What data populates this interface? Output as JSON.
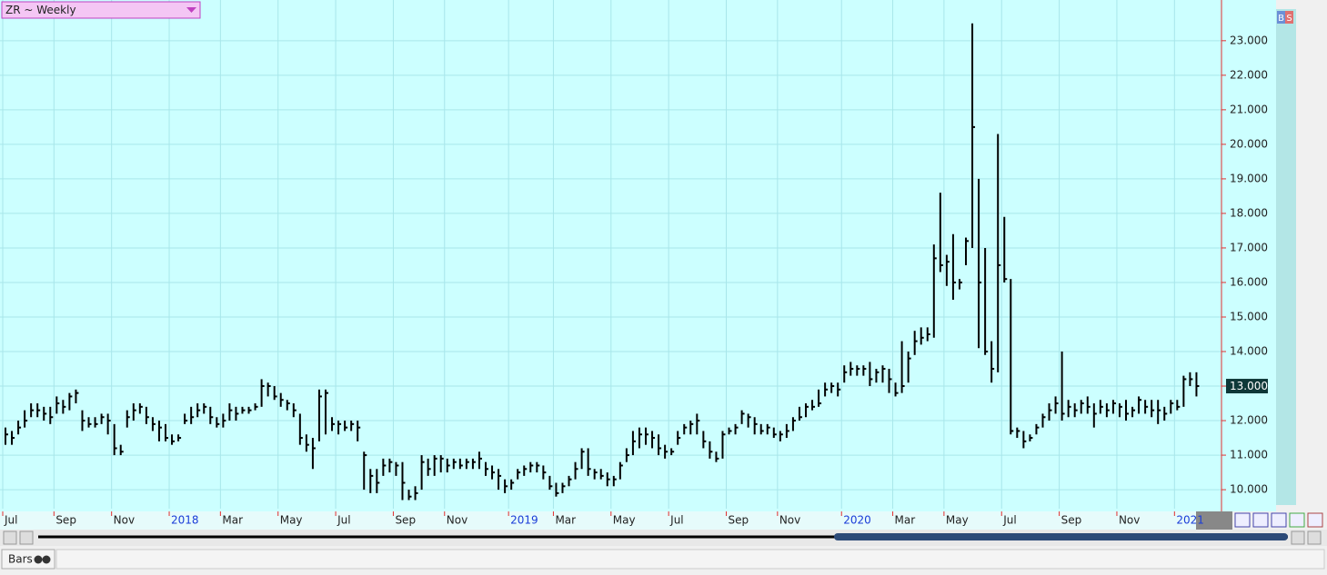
{
  "chart_data": {
    "type": "ohlc",
    "title": "ZR ~ Weekly",
    "categories": [
      "Jul",
      null,
      null,
      null,
      null,
      null,
      null,
      null,
      "Sep",
      null,
      null,
      null,
      null,
      null,
      null,
      null,
      null,
      "Nov",
      null,
      null,
      null,
      null,
      null,
      null,
      null,
      null,
      "2018",
      null,
      null,
      null,
      null,
      null,
      null,
      null,
      "Mar",
      null,
      null,
      null,
      null,
      null,
      null,
      null,
      null,
      "May",
      null,
      null,
      null,
      null,
      null,
      null,
      null,
      null,
      "Jul",
      null,
      null,
      null,
      null,
      null,
      null,
      null,
      null,
      "Sep",
      null,
      null,
      null,
      null,
      null,
      null,
      null,
      "Nov",
      null,
      null,
      null,
      null,
      null,
      null,
      null,
      null,
      null,
      "2019",
      null,
      null,
      null,
      null,
      null,
      null,
      "Mar",
      null,
      null,
      null,
      null,
      null,
      null,
      null,
      null,
      "May",
      null,
      null,
      null,
      null,
      null,
      null,
      null,
      null,
      "Jul",
      null,
      null,
      null,
      null,
      null,
      null,
      null,
      null,
      "Sep",
      null,
      null,
      null,
      null,
      null,
      null,
      null,
      "Nov",
      null,
      null,
      null,
      null,
      null,
      null,
      null,
      null,
      null,
      "2020",
      null,
      null,
      null,
      null,
      null,
      null,
      null,
      "Mar",
      null,
      null,
      null,
      null,
      null,
      null,
      null,
      "May",
      null,
      null,
      null,
      null,
      null,
      null,
      null,
      null,
      "Jul",
      null,
      null,
      null,
      null,
      null,
      null,
      null,
      null,
      "Sep",
      null,
      null,
      null,
      null,
      null,
      null,
      null,
      null,
      "Nov",
      null,
      null,
      null,
      null,
      null,
      null,
      null,
      null,
      "2021",
      null,
      null,
      null
    ],
    "high": [
      11.8,
      11.7,
      12.0,
      12.3,
      12.5,
      12.5,
      12.4,
      12.4,
      12.7,
      12.6,
      12.8,
      12.9,
      12.3,
      12.1,
      12.1,
      12.2,
      12.2,
      11.9,
      11.3,
      12.3,
      12.5,
      12.5,
      12.4,
      12.1,
      12.0,
      11.9,
      11.6,
      11.6,
      12.2,
      12.4,
      12.5,
      12.5,
      12.4,
      12.1,
      12.2,
      12.5,
      12.4,
      12.4,
      12.4,
      12.5,
      13.2,
      13.1,
      13.0,
      12.8,
      12.6,
      12.5,
      12.2,
      11.6,
      11.5,
      12.9,
      12.9,
      12.1,
      12.0,
      12.0,
      12.0,
      12.0,
      11.1,
      10.6,
      10.6,
      10.9,
      10.9,
      10.8,
      10.8,
      10.0,
      10.1,
      11.0,
      10.9,
      11.0,
      11.0,
      10.9,
      10.9,
      10.9,
      10.9,
      10.9,
      11.1,
      10.8,
      10.7,
      10.6,
      10.3,
      10.3,
      10.6,
      10.7,
      10.8,
      10.8,
      10.7,
      10.4,
      10.2,
      10.2,
      10.4,
      10.8,
      11.2,
      11.2,
      10.6,
      10.6,
      10.5,
      10.4,
      10.8,
      11.2,
      11.7,
      11.8,
      11.8,
      11.7,
      11.6,
      11.3,
      11.2,
      11.7,
      11.9,
      12.0,
      12.2,
      11.7,
      11.4,
      11.1,
      11.7,
      11.8,
      11.9,
      12.3,
      12.2,
      12.1,
      11.9,
      11.9,
      11.8,
      11.7,
      11.9,
      12.1,
      12.4,
      12.5,
      12.6,
      12.9,
      13.1,
      13.1,
      13.1,
      13.6,
      13.7,
      13.6,
      13.6,
      13.7,
      13.5,
      13.6,
      13.5,
      13.1,
      14.3,
      14.0,
      14.6,
      14.7,
      14.7,
      17.1,
      18.6,
      16.8,
      17.4,
      16.1,
      17.3,
      23.5,
      19.0,
      17.0,
      14.3,
      20.3,
      17.9,
      16.1,
      11.8,
      11.7,
      11.6,
      11.9,
      12.2,
      12.5,
      12.7,
      14.0,
      12.6,
      12.5,
      12.6,
      12.7,
      12.5,
      12.6,
      12.5,
      12.6,
      12.5,
      12.6,
      12.4,
      12.7,
      12.6,
      12.6,
      12.6,
      12.4,
      12.6,
      12.6,
      13.3,
      13.4,
      13.4
    ],
    "low": [
      11.3,
      11.3,
      11.6,
      11.8,
      12.1,
      12.1,
      12.0,
      11.9,
      12.2,
      12.2,
      12.3,
      12.5,
      11.7,
      11.8,
      11.8,
      11.9,
      11.6,
      11.0,
      11.0,
      11.8,
      12.0,
      12.2,
      11.9,
      11.7,
      11.4,
      11.4,
      11.3,
      11.4,
      11.9,
      11.9,
      12.1,
      12.2,
      11.9,
      11.8,
      11.8,
      12.0,
      12.0,
      12.2,
      12.2,
      12.3,
      12.4,
      12.7,
      12.6,
      12.4,
      12.3,
      12.1,
      11.3,
      11.1,
      10.6,
      11.4,
      11.6,
      11.7,
      11.6,
      11.7,
      11.7,
      11.4,
      10.0,
      9.9,
      9.9,
      10.4,
      10.5,
      10.4,
      9.7,
      9.7,
      9.7,
      10.0,
      10.4,
      10.4,
      10.5,
      10.5,
      10.6,
      10.6,
      10.6,
      10.6,
      10.6,
      10.4,
      10.3,
      10.0,
      9.9,
      10.0,
      10.3,
      10.4,
      10.5,
      10.5,
      10.3,
      10.0,
      9.8,
      9.9,
      10.1,
      10.3,
      10.6,
      10.4,
      10.3,
      10.3,
      10.1,
      10.1,
      10.3,
      10.8,
      11.0,
      11.2,
      11.3,
      11.2,
      11.0,
      10.9,
      11.0,
      11.3,
      11.6,
      11.6,
      11.6,
      11.2,
      10.9,
      10.8,
      10.9,
      11.6,
      11.6,
      11.9,
      11.8,
      11.6,
      11.6,
      11.6,
      11.5,
      11.4,
      11.5,
      11.7,
      12.0,
      12.1,
      12.3,
      12.4,
      12.7,
      12.8,
      12.7,
      13.1,
      13.3,
      13.3,
      13.3,
      13.0,
      13.1,
      13.1,
      12.8,
      12.7,
      12.8,
      13.1,
      13.9,
      14.2,
      14.3,
      14.4,
      16.3,
      15.9,
      15.5,
      15.8,
      16.5,
      17.0,
      14.1,
      13.9,
      13.1,
      13.4,
      16.0,
      11.6,
      11.5,
      11.2,
      11.4,
      11.6,
      11.8,
      12.0,
      12.2,
      12.0,
      12.1,
      12.1,
      12.2,
      12.2,
      11.8,
      12.2,
      12.1,
      12.2,
      12.1,
      12.0,
      12.1,
      12.2,
      12.2,
      12.1,
      11.9,
      12.0,
      12.2,
      12.3,
      12.4,
      13.0,
      12.7
    ],
    "close": [
      11.6,
      11.5,
      11.8,
      12.0,
      12.3,
      12.3,
      12.2,
      12.1,
      12.5,
      12.4,
      12.7,
      12.8,
      12.0,
      11.9,
      11.9,
      12.1,
      12.0,
      11.2,
      11.1,
      12.1,
      12.3,
      12.4,
      12.1,
      11.9,
      11.8,
      11.5,
      11.4,
      11.5,
      12.0,
      12.1,
      12.3,
      12.4,
      12.1,
      11.9,
      12.0,
      12.3,
      12.2,
      12.3,
      12.3,
      12.4,
      13.0,
      13.0,
      12.7,
      12.6,
      12.5,
      12.3,
      11.5,
      11.3,
      11.2,
      12.7,
      12.8,
      11.9,
      11.9,
      11.8,
      11.9,
      11.8,
      11.0,
      10.4,
      10.2,
      10.7,
      10.8,
      10.7,
      10.2,
      9.8,
      9.9,
      10.8,
      10.6,
      10.9,
      10.9,
      10.7,
      10.8,
      10.7,
      10.8,
      10.8,
      10.9,
      10.6,
      10.5,
      10.4,
      10.1,
      10.2,
      10.5,
      10.6,
      10.7,
      10.7,
      10.5,
      10.1,
      9.9,
      10.1,
      10.3,
      10.6,
      11.1,
      10.6,
      10.5,
      10.4,
      10.3,
      10.3,
      10.7,
      11.0,
      11.4,
      11.6,
      11.6,
      11.5,
      11.2,
      11.1,
      11.1,
      11.5,
      11.8,
      11.9,
      12.0,
      11.4,
      11.1,
      10.9,
      11.6,
      11.7,
      11.8,
      12.2,
      12.1,
      11.9,
      11.7,
      11.8,
      11.6,
      11.6,
      11.7,
      12.0,
      12.1,
      12.4,
      12.4,
      12.5,
      12.9,
      13.0,
      12.9,
      13.4,
      13.5,
      13.5,
      13.5,
      13.2,
      13.4,
      13.5,
      13.2,
      12.8,
      13.0,
      13.8,
      14.3,
      14.4,
      14.5,
      16.7,
      16.5,
      16.6,
      16.0,
      16.0,
      17.2,
      20.5,
      16.0,
      14.0,
      13.5,
      16.5,
      16.1,
      11.7,
      11.7,
      11.4,
      11.5,
      11.8,
      12.1,
      12.3,
      12.5,
      12.2,
      12.4,
      12.3,
      12.5,
      12.4,
      12.2,
      12.4,
      12.3,
      12.5,
      12.4,
      12.2,
      12.3,
      12.6,
      12.4,
      12.3,
      12.3,
      12.2,
      12.5,
      12.4,
      13.2,
      13.2,
      13.0
    ],
    "color": "#000000",
    "ylim": [
      9.45,
      24.1
    ],
    "yticks": [
      {
        "value": 10,
        "label": "10.000"
      },
      {
        "value": 11,
        "label": "11.000"
      },
      {
        "value": 12,
        "label": "12.000"
      },
      {
        "value": 13,
        "label": "13.000"
      },
      {
        "value": 14,
        "label": "14.000"
      },
      {
        "value": 15,
        "label": "15.000"
      },
      {
        "value": 16,
        "label": "16.000"
      },
      {
        "value": 17,
        "label": "17.000"
      },
      {
        "value": 18,
        "label": "18.000"
      },
      {
        "value": 19,
        "label": "19.000"
      },
      {
        "value": 20,
        "label": "20.000"
      },
      {
        "value": 21,
        "label": "21.000"
      },
      {
        "value": 22,
        "label": "22.000"
      },
      {
        "value": 23,
        "label": "23.000"
      }
    ],
    "last_value": {
      "value": 13.0,
      "label": "13.000"
    },
    "grid": true
  },
  "ui": {
    "buttons": [
      "B",
      "S"
    ],
    "status": "Bars"
  }
}
